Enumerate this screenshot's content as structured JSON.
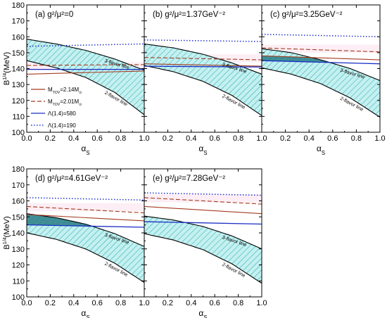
{
  "figure": {
    "ylabel": "B^{1/4}(MeV)",
    "xlabel": "α_S",
    "line_3flavor": "3-flavor line",
    "line_2flavor": "2-flavor line",
    "colors": {
      "band_fill": "#b8ecec",
      "hatch": "#1fa7ad",
      "overlap": "#2a7d86",
      "m214": "#a33a1f",
      "m201": "#a33a1f",
      "lambda580": "#1a2ec4",
      "lambda190": "#2233cc",
      "pink_band": "#f7cfe0"
    }
  },
  "legend": [
    {
      "key": "m214",
      "label": "M_TOV=2.14M_⊙",
      "style": "solid",
      "color": "#a33a1f"
    },
    {
      "key": "m201",
      "label": "M_TOV=2.01M_⊙",
      "style": "dashed",
      "color": "#a33a1f"
    },
    {
      "key": "lambda580",
      "label": "Λ(1.4)=580",
      "style": "solid",
      "color": "#1a2ec4"
    },
    {
      "key": "lambda190",
      "label": "Λ(1.4)=190",
      "style": "dotted",
      "color": "#2233cc"
    }
  ],
  "chart_data": [
    {
      "type": "line",
      "panel": "(a)",
      "title": "(a) g²/μ²=0",
      "xlabel": "α_S",
      "ylabel": "B^{1/4}(MeV)",
      "xlim": [
        0,
        1
      ],
      "ylim": [
        100,
        180
      ],
      "xticks": [
        "0.0",
        "0.2",
        "0.4",
        "0.6",
        "0.8",
        "1.0"
      ],
      "yticks": [
        "100",
        "110",
        "120",
        "130",
        "140",
        "150",
        "160",
        "170",
        "180"
      ],
      "band_3flavor": {
        "x": [
          0,
          0.25,
          0.5,
          0.75,
          1.0
        ],
        "y": [
          158.5,
          155.5,
          151.5,
          146,
          139
        ]
      },
      "band_2flavor": {
        "x": [
          0,
          0.25,
          0.5,
          0.75,
          1.0
        ],
        "y": [
          145,
          140.5,
          134.5,
          125,
          111
        ]
      },
      "series": [
        {
          "name": "M_TOV=2.14M_⊙",
          "x": [
            0,
            1
          ],
          "y": [
            136.5,
            138.5
          ]
        },
        {
          "name": "M_TOV=2.01M_⊙",
          "x": [
            0,
            1
          ],
          "y": [
            142,
            142.5
          ]
        },
        {
          "name": "Λ(1.4)=580",
          "x": [
            0,
            1
          ],
          "y": [
            139.5,
            139.5
          ]
        },
        {
          "name": "Λ(1.4)=190",
          "x": [
            0,
            1
          ],
          "y": [
            154,
            155.5
          ]
        }
      ]
    },
    {
      "type": "line",
      "panel": "(b)",
      "title": "(b) g²/μ²=1.37GeV⁻²",
      "xlabel": "α_S",
      "ylabel": "",
      "xlim": [
        0,
        1
      ],
      "ylim": [
        100,
        180
      ],
      "xticks": [
        "0.0",
        "0.2",
        "0.4",
        "0.6",
        "0.8",
        "1.0"
      ],
      "band_3flavor": {
        "x": [
          0,
          0.25,
          0.5,
          0.75,
          1.0
        ],
        "y": [
          155.5,
          153,
          149,
          143.5,
          136.5
        ]
      },
      "band_2flavor": {
        "x": [
          0,
          0.25,
          0.5,
          0.75,
          1.0
        ],
        "y": [
          142,
          138,
          132,
          123,
          110.5
        ]
      },
      "series": [
        {
          "name": "M_TOV=2.14M_⊙",
          "x": [
            0,
            1
          ],
          "y": [
            143,
            141.5
          ]
        },
        {
          "name": "M_TOV=2.01M_⊙",
          "x": [
            0,
            1
          ],
          "y": [
            147,
            145.5
          ]
        },
        {
          "name": "Λ(1.4)=580",
          "x": [
            0,
            1
          ],
          "y": [
            141.5,
            141
          ]
        },
        {
          "name": "Λ(1.4)=190",
          "x": [
            0,
            1
          ],
          "y": [
            158,
            157
          ]
        }
      ]
    },
    {
      "type": "line",
      "panel": "(c)",
      "title": "(c) g²/μ²=3.25GeV⁻²",
      "xlabel": "α_S",
      "ylabel": "",
      "xlim": [
        0,
        1
      ],
      "ylim": [
        100,
        180
      ],
      "xticks": [
        "0.0",
        "0.2",
        "0.4",
        "0.6",
        "0.8",
        "1.0"
      ],
      "band_3flavor": {
        "x": [
          0,
          0.25,
          0.5,
          0.75,
          1.0
        ],
        "y": [
          152.5,
          150,
          145.5,
          140,
          132.5
        ]
      },
      "band_2flavor": {
        "x": [
          0,
          0.25,
          0.5,
          0.75,
          1.0
        ],
        "y": [
          140.5,
          136.5,
          130.5,
          121.5,
          109.5
        ]
      },
      "series": [
        {
          "name": "M_TOV=2.14M_⊙",
          "x": [
            0,
            1
          ],
          "y": [
            148,
            145.5
          ]
        },
        {
          "name": "M_TOV=2.01M_⊙",
          "x": [
            0,
            1
          ],
          "y": [
            153,
            150.5
          ]
        },
        {
          "name": "Λ(1.4)=580",
          "x": [
            0,
            1
          ],
          "y": [
            145,
            143
          ]
        },
        {
          "name": "Λ(1.4)=190",
          "x": [
            0,
            1
          ],
          "y": [
            161.5,
            160
          ]
        }
      ]
    },
    {
      "type": "line",
      "panel": "(d)",
      "title": "(d) g²/μ²=4.61GeV⁻²",
      "xlabel": "α_S",
      "ylabel": "B^{1/4}(MeV)",
      "xlim": [
        0,
        1
      ],
      "ylim": [
        100,
        180
      ],
      "xticks": [
        "0.0",
        "0.2",
        "0.4",
        "0.6",
        "0.8",
        "1.0"
      ],
      "yticks": [
        "100",
        "110",
        "120",
        "130",
        "140",
        "150",
        "160",
        "170",
        "180"
      ],
      "band_3flavor": {
        "x": [
          0,
          0.25,
          0.5,
          0.75,
          1.0
        ],
        "y": [
          152,
          149.5,
          145.5,
          139.5,
          131.5
        ]
      },
      "band_2flavor": {
        "x": [
          0,
          0.25,
          0.5,
          0.75,
          1.0
        ],
        "y": [
          140,
          136,
          130,
          121,
          109
        ]
      },
      "series": [
        {
          "name": "M_TOV=2.14M_⊙",
          "x": [
            0,
            1
          ],
          "y": [
            151.5,
            147.5
          ]
        },
        {
          "name": "M_TOV=2.01M_⊙",
          "x": [
            0,
            1
          ],
          "y": [
            156.5,
            152.5
          ]
        },
        {
          "name": "Λ(1.4)=580",
          "x": [
            0,
            1
          ],
          "y": [
            145,
            143.5
          ]
        },
        {
          "name": "Λ(1.4)=190",
          "x": [
            0,
            1
          ],
          "y": [
            162,
            160.5
          ]
        }
      ]
    },
    {
      "type": "line",
      "panel": "(e)",
      "title": "(e) g²/μ²=7.28GeV⁻²",
      "xlabel": "α_S",
      "ylabel": "",
      "xlim": [
        0,
        1
      ],
      "ylim": [
        100,
        180
      ],
      "xticks": [
        "0.0",
        "0.2",
        "0.4",
        "0.6",
        "0.8",
        "1.0"
      ],
      "band_3flavor": {
        "x": [
          0,
          0.25,
          0.5,
          0.75,
          1.0
        ],
        "y": [
          150.5,
          148,
          144,
          138,
          130
        ]
      },
      "band_2flavor": {
        "x": [
          0,
          0.25,
          0.5,
          0.75,
          1.0
        ],
        "y": [
          139.5,
          135.5,
          129.5,
          120.5,
          108.5
        ]
      },
      "series": [
        {
          "name": "M_TOV=2.14M_⊙",
          "x": [
            0,
            1
          ],
          "y": [
            156.5,
            152
          ]
        },
        {
          "name": "M_TOV=2.01M_⊙",
          "x": [
            0,
            1
          ],
          "y": [
            162,
            158
          ]
        },
        {
          "name": "Λ(1.4)=580",
          "x": [
            0,
            1
          ],
          "y": [
            147,
            145.5
          ]
        },
        {
          "name": "Λ(1.4)=190",
          "x": [
            0,
            1
          ],
          "y": [
            165,
            163.5
          ]
        }
      ]
    }
  ]
}
